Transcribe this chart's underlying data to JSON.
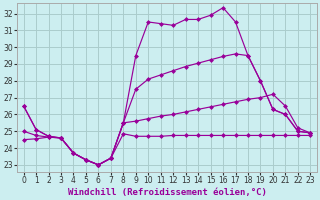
{
  "bg_color": "#cceef0",
  "grid_color": "#aacccc",
  "line_color": "#990099",
  "marker": "D",
  "marker_size": 2.5,
  "xlabel": "Windchill (Refroidissement éolien,°C)",
  "xlabel_fontsize": 6.5,
  "tick_fontsize": 5.5,
  "xlim": [
    -0.5,
    23.5
  ],
  "ylim": [
    22.6,
    32.6
  ],
  "yticks": [
    23,
    24,
    25,
    26,
    27,
    28,
    29,
    30,
    31,
    32
  ],
  "xticks": [
    0,
    1,
    2,
    3,
    4,
    5,
    6,
    7,
    8,
    9,
    10,
    11,
    12,
    13,
    14,
    15,
    16,
    17,
    18,
    19,
    20,
    21,
    22,
    23
  ],
  "line1_x": [
    0,
    1,
    2,
    3,
    4,
    5,
    6,
    7,
    8,
    9,
    10,
    11,
    12,
    13,
    14,
    15,
    16,
    17,
    18,
    19,
    20,
    21,
    22,
    23
  ],
  "line1_y": [
    26.5,
    25.1,
    24.7,
    24.6,
    23.7,
    23.3,
    23.0,
    23.4,
    25.5,
    29.5,
    31.5,
    31.4,
    31.3,
    31.65,
    31.65,
    31.9,
    32.35,
    31.5,
    29.5,
    28.0,
    26.3,
    26.0,
    25.0,
    24.9
  ],
  "line2_x": [
    0,
    1,
    2,
    3,
    4,
    5,
    6,
    7,
    8,
    9,
    10,
    11,
    12,
    13,
    14,
    15,
    16,
    17,
    18,
    19,
    20,
    21,
    22,
    23
  ],
  "line2_y": [
    26.5,
    25.1,
    24.7,
    24.6,
    23.7,
    23.3,
    23.0,
    23.4,
    25.5,
    27.5,
    28.1,
    28.35,
    28.6,
    28.85,
    29.05,
    29.25,
    29.45,
    29.6,
    29.5,
    28.0,
    26.3,
    26.0,
    25.0,
    24.9
  ],
  "line3_x": [
    0,
    1,
    2,
    3,
    4,
    5,
    6,
    7,
    8,
    9,
    10,
    11,
    12,
    13,
    14,
    15,
    16,
    17,
    18,
    19,
    20,
    21,
    22,
    23
  ],
  "line3_y": [
    25.0,
    24.75,
    24.65,
    24.6,
    23.7,
    23.3,
    23.0,
    23.4,
    25.5,
    25.6,
    25.75,
    25.9,
    26.0,
    26.15,
    26.3,
    26.45,
    26.6,
    26.75,
    26.9,
    27.0,
    27.2,
    26.5,
    25.2,
    24.9
  ],
  "line4_x": [
    0,
    1,
    2,
    3,
    4,
    5,
    6,
    7,
    8,
    9,
    10,
    11,
    12,
    13,
    14,
    15,
    16,
    17,
    18,
    19,
    20,
    21,
    22,
    23
  ],
  "line4_y": [
    24.5,
    24.55,
    24.65,
    24.6,
    23.7,
    23.3,
    23.0,
    23.4,
    24.85,
    24.7,
    24.7,
    24.7,
    24.75,
    24.75,
    24.75,
    24.75,
    24.75,
    24.75,
    24.75,
    24.75,
    24.75,
    24.75,
    24.75,
    24.75
  ]
}
